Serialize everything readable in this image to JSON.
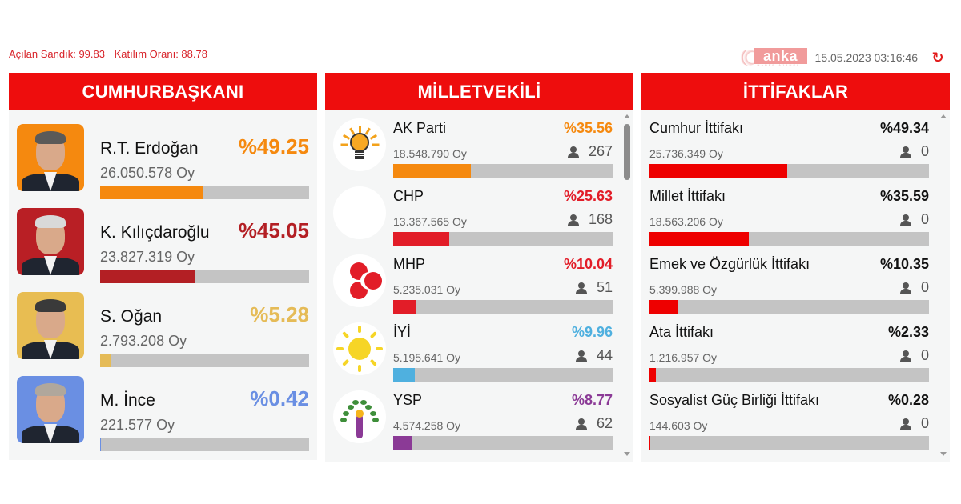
{
  "header": {
    "opened_boxes_label": "Açılan Sandık: 99.83",
    "turnout_label": "Katılım Oranı: 88.78",
    "logo_text": "anka",
    "logo_tagline": "HABER AJANSI",
    "timestamp": "15.05.2023 03:16:46",
    "refresh_icon": "refresh-icon"
  },
  "panels": {
    "president": {
      "title": "CUMHURBAŞKANI",
      "candidates": [
        {
          "name": "R.T. Erdoğan",
          "pct_label": "%49.25",
          "pct": 49.25,
          "votes": "26.050.578 Oy",
          "color": "#f5890f",
          "photo_bg": "#f5890f",
          "hair": "#5b5a58"
        },
        {
          "name": "K. Kılıçdaroğlu",
          "pct_label": "%45.05",
          "pct": 45.05,
          "votes": "23.827.319 Oy",
          "color": "#b31f24",
          "photo_bg": "#b91f25",
          "hair": "#d9d9d9"
        },
        {
          "name": "S. Oğan",
          "pct_label": "%5.28",
          "pct": 5.28,
          "votes": "2.793.208 Oy",
          "color": "#e5bb57",
          "photo_bg": "#e8bd52",
          "hair": "#3a3a3a"
        },
        {
          "name": "M. İnce",
          "pct_label": "%0.42",
          "pct": 0.42,
          "votes": "221.577 Oy",
          "color": "#6a8fe3",
          "photo_bg": "#6a8fe3",
          "hair": "#b0a79c"
        }
      ]
    },
    "parliament": {
      "title": "MİLLETVEKİLİ",
      "parties": [
        {
          "name": "AK Parti",
          "pct_label": "%35.56",
          "pct": 35.56,
          "votes": "18.548.790 Oy",
          "seats": "267",
          "color": "#f5890f",
          "logo": "akp-logo"
        },
        {
          "name": "CHP",
          "pct_label": "%25.63",
          "pct": 25.63,
          "votes": "13.367.565 Oy",
          "seats": "168",
          "color": "#e21d28",
          "logo": "chp-logo"
        },
        {
          "name": "MHP",
          "pct_label": "%10.04",
          "pct": 10.04,
          "votes": "5.235.031 Oy",
          "seats": "51",
          "color": "#e21d28",
          "logo": "mhp-logo"
        },
        {
          "name": "İYİ",
          "pct_label": "%9.96",
          "pct": 9.96,
          "votes": "5.195.641 Oy",
          "seats": "44",
          "color": "#4fb0df",
          "logo": "iyi-logo"
        },
        {
          "name": "YSP",
          "pct_label": "%8.77",
          "pct": 8.77,
          "votes": "4.574.258 Oy",
          "seats": "62",
          "color": "#8b3a96",
          "logo": "ysp-logo"
        }
      ]
    },
    "alliances": {
      "title": "İTTİFAKLAR",
      "items": [
        {
          "name": "Cumhur İttifakı",
          "pct_label": "%49.34",
          "pct": 49.34,
          "votes": "25.736.349 Oy",
          "seats": "0",
          "color": "#ee0000"
        },
        {
          "name": "Millet İttifakı",
          "pct_label": "%35.59",
          "pct": 35.59,
          "votes": "18.563.206 Oy",
          "seats": "0",
          "color": "#ee0000"
        },
        {
          "name": "Emek ve Özgürlük İttifakı",
          "pct_label": "%10.35",
          "pct": 10.35,
          "votes": "5.399.988 Oy",
          "seats": "0",
          "color": "#ee0000"
        },
        {
          "name": "Ata İttifakı",
          "pct_label": "%2.33",
          "pct": 2.33,
          "votes": "1.216.957 Oy",
          "seats": "0",
          "color": "#ee0000"
        },
        {
          "name": "Sosyalist Güç Birliği İttifakı",
          "pct_label": "%0.28",
          "pct": 0.28,
          "votes": "144.603 Oy",
          "seats": "0",
          "color": "#ee0000"
        }
      ]
    }
  },
  "colors": {
    "header_red": "#ee0d0d",
    "panel_bg": "#f5f6f6",
    "bar_track": "#c4c4c4"
  }
}
